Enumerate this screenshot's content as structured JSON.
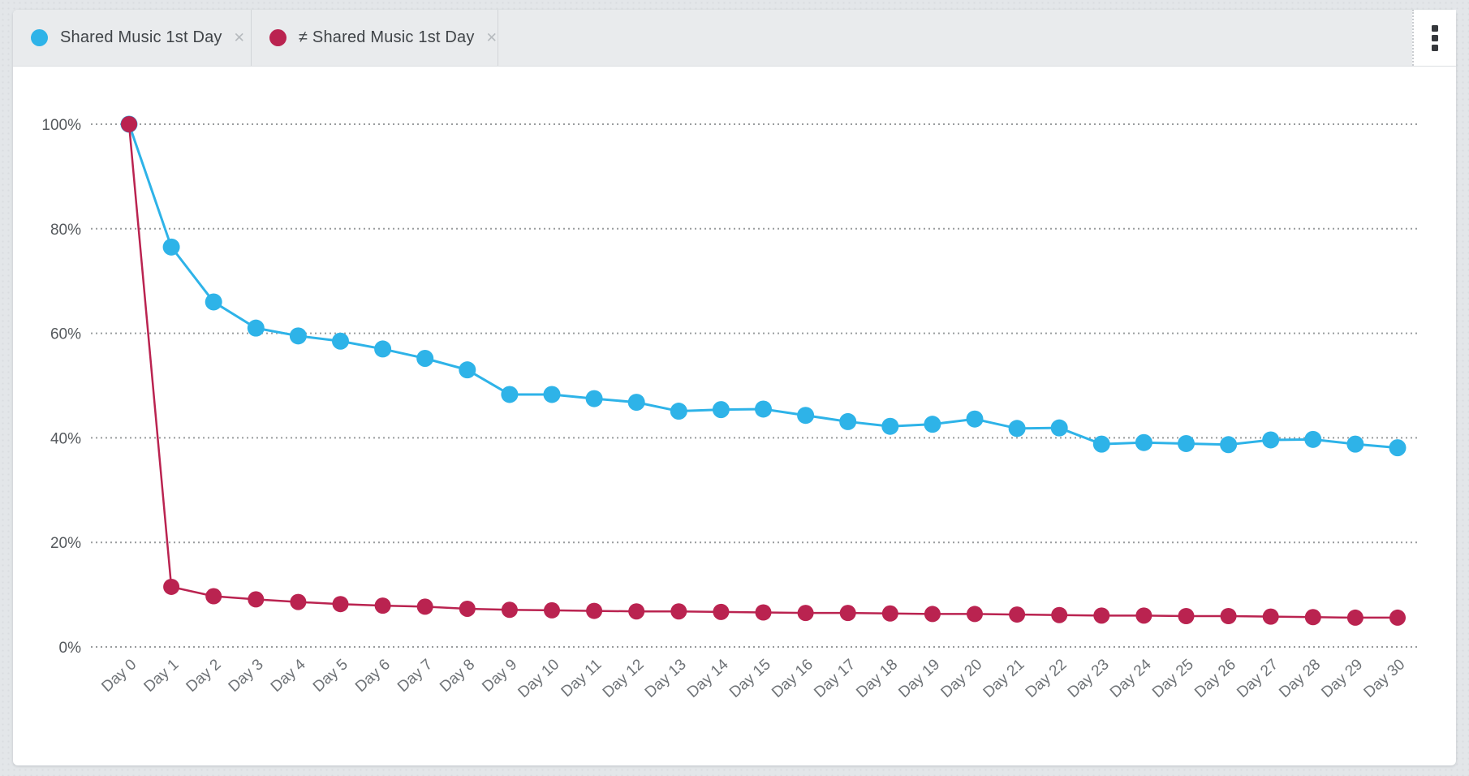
{
  "colors": {
    "page_background": "#e3e6e9",
    "panel_background": "#ffffff",
    "tabbar_background": "#e9ebed",
    "gridline": "#999c9e",
    "y_tick_text": "#55595d",
    "x_tick_text": "#6e7276",
    "series_blue": "#2eb3e8",
    "series_crimson": "#ba2350"
  },
  "legend_tabs": [
    {
      "label": "Shared Music 1st Day",
      "color": "#2eb3e8",
      "close_label": "✕"
    },
    {
      "label": "≠ Shared Music 1st Day",
      "color": "#ba2350",
      "close_label": "✕"
    }
  ],
  "toolbar": {
    "menu_icon": "kebab-menu"
  },
  "chart_data": {
    "type": "line",
    "title": "",
    "xlabel": "",
    "ylabel": "",
    "categories": [
      "Day 0",
      "Day 1",
      "Day 2",
      "Day 3",
      "Day 4",
      "Day 5",
      "Day 6",
      "Day 7",
      "Day 8",
      "Day 9",
      "Day 10",
      "Day 11",
      "Day 12",
      "Day 13",
      "Day 14",
      "Day 15",
      "Day 16",
      "Day 17",
      "Day 18",
      "Day 19",
      "Day 20",
      "Day 21",
      "Day 22",
      "Day 23",
      "Day 24",
      "Day 25",
      "Day 26",
      "Day 27",
      "Day 28",
      "Day 29",
      "Day 30"
    ],
    "series": [
      {
        "name": "Shared Music 1st Day",
        "color": "#2eb3e8",
        "values": [
          100,
          76.5,
          66,
          61,
          59.5,
          58.5,
          57,
          55.2,
          53,
          48.3,
          48.3,
          47.5,
          46.8,
          45.1,
          45.4,
          45.5,
          44.3,
          43.1,
          42.2,
          42.6,
          43.6,
          41.8,
          41.9,
          38.8,
          39.1,
          38.9,
          38.7,
          39.6,
          39.7,
          38.8,
          38.1
        ]
      },
      {
        "name": "≠ Shared Music 1st Day",
        "color": "#ba2350",
        "values": [
          100,
          11.5,
          9.7,
          9.1,
          8.6,
          8.2,
          7.9,
          7.7,
          7.3,
          7.1,
          7.0,
          6.9,
          6.8,
          6.8,
          6.7,
          6.6,
          6.5,
          6.5,
          6.4,
          6.3,
          6.3,
          6.2,
          6.1,
          6.0,
          6.0,
          5.9,
          5.9,
          5.8,
          5.7,
          5.6,
          5.6
        ]
      }
    ],
    "y_ticks": [
      {
        "label": "100%",
        "value": 100
      },
      {
        "label": "80%",
        "value": 80
      },
      {
        "label": "60%",
        "value": 60
      },
      {
        "label": "40%",
        "value": 40
      },
      {
        "label": "20%",
        "value": 20
      },
      {
        "label": "0%",
        "value": 0
      }
    ],
    "ylim": [
      0,
      100
    ],
    "grid": "horizontal-dotted",
    "x_tick_rotation": -42,
    "legend_position": "top-tabs"
  }
}
